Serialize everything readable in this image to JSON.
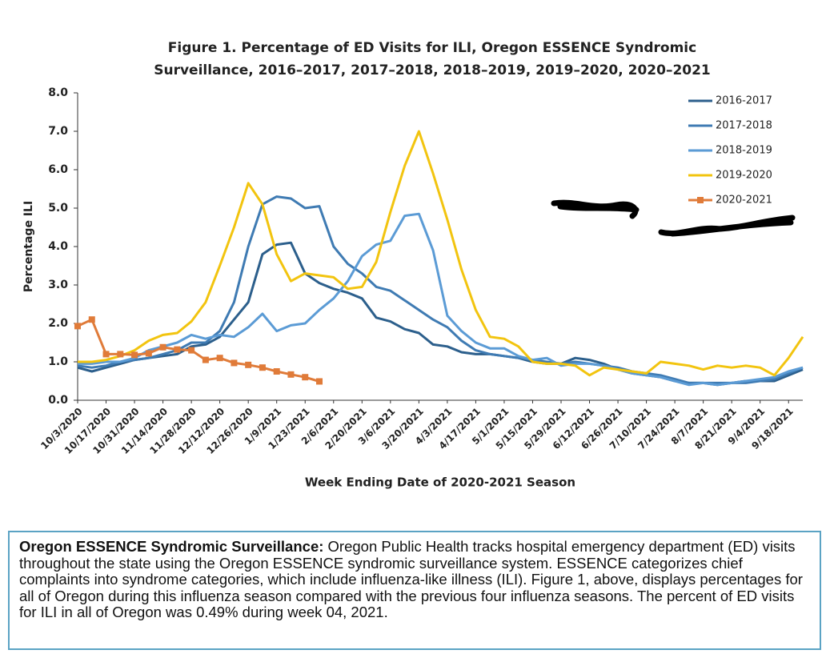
{
  "chart_data": {
    "type": "line",
    "title": [
      "Figure 1. Percentage of ED Visits for ILI, Oregon ESSENCE Syndromic",
      "Surveillance, 2016–2017, 2017–2018, 2018–2019, 2019–2020, 2020–2021"
    ],
    "x_label": "Week Ending Date of 2020-2021 Season",
    "y_label": "Percentage ILI",
    "categories": [
      "10/3/2020",
      null,
      "10/17/2020",
      null,
      "10/31/2020",
      null,
      "11/14/2020",
      null,
      "11/28/2020",
      null,
      "12/12/2020",
      null,
      "12/26/2020",
      null,
      "1/9/2021",
      null,
      "1/23/2021",
      null,
      "2/6/2021",
      null,
      "2/20/2021",
      null,
      "3/6/2021",
      null,
      "3/20/2021",
      null,
      "4/3/2021",
      null,
      "4/17/2021",
      null,
      "5/1/2021",
      null,
      "5/15/2021",
      null,
      "5/29/2021",
      null,
      "6/12/2021",
      null,
      "6/26/2021",
      null,
      "7/10/2021",
      null,
      "7/24/2021",
      null,
      "8/7/2021",
      null,
      "8/21/2021",
      null,
      "9/4/2021",
      null,
      "9/18/2021",
      null
    ],
    "ylim": [
      0,
      8
    ],
    "yticks": [
      {
        "value": 0,
        "label": "0.0"
      },
      {
        "value": 1,
        "label": "1.0"
      },
      {
        "value": 2,
        "label": "2.0"
      },
      {
        "value": 3,
        "label": "3.0"
      },
      {
        "value": 4,
        "label": "4.0"
      },
      {
        "value": 5,
        "label": "5.0"
      },
      {
        "value": 6,
        "label": "6.0"
      },
      {
        "value": 7,
        "label": "7.0"
      },
      {
        "value": 8,
        "label": "8.0"
      }
    ],
    "grid": false,
    "legend": "top-right",
    "series": [
      {
        "name": "2016-2017",
        "color": "#2c5f8c",
        "values": [
          0.85,
          0.75,
          0.85,
          0.95,
          1.05,
          1.1,
          1.15,
          1.2,
          1.4,
          1.45,
          1.65,
          2.1,
          2.55,
          3.8,
          4.05,
          4.1,
          3.3,
          3.05,
          2.9,
          2.8,
          2.65,
          2.15,
          2.05,
          1.85,
          1.75,
          1.45,
          1.4,
          1.25,
          1.2,
          1.2,
          1.15,
          1.1,
          1.0,
          0.95,
          0.95,
          1.1,
          1.05,
          0.95,
          0.8,
          0.7,
          0.65,
          0.6,
          0.5,
          0.45,
          0.45,
          0.4,
          0.45,
          0.5,
          0.5,
          0.5,
          0.65,
          0.8
        ]
      },
      {
        "name": "2017-2018",
        "color": "#3f7bb3",
        "values": [
          0.9,
          0.85,
          0.9,
          1.0,
          1.05,
          1.1,
          1.2,
          1.3,
          1.5,
          1.5,
          1.8,
          2.55,
          4.0,
          5.1,
          5.3,
          5.25,
          5.0,
          5.05,
          4.0,
          3.55,
          3.3,
          2.95,
          2.85,
          2.6,
          2.35,
          2.1,
          1.9,
          1.55,
          1.3,
          1.2,
          1.15,
          1.1,
          1.05,
          1.0,
          0.95,
          1.0,
          0.95,
          0.9,
          0.85,
          0.75,
          0.7,
          0.65,
          0.55,
          0.45,
          0.45,
          0.45,
          0.45,
          0.45,
          0.5,
          0.55,
          0.7,
          0.85
        ]
      },
      {
        "name": "2018-2019",
        "color": "#5b9bd5",
        "values": [
          0.95,
          0.95,
          1.0,
          1.0,
          1.1,
          1.3,
          1.4,
          1.5,
          1.7,
          1.6,
          1.7,
          1.65,
          1.9,
          2.25,
          1.8,
          1.95,
          2.0,
          2.35,
          2.65,
          3.1,
          3.75,
          4.05,
          4.15,
          4.8,
          4.85,
          3.9,
          2.2,
          1.8,
          1.5,
          1.35,
          1.35,
          1.15,
          1.05,
          1.1,
          0.9,
          0.95,
          0.95,
          0.9,
          0.8,
          0.7,
          0.65,
          0.6,
          0.5,
          0.4,
          0.45,
          0.4,
          0.45,
          0.5,
          0.55,
          0.6,
          0.75,
          0.85
        ]
      },
      {
        "name": "2019-2020",
        "color": "#f2c40f",
        "values": [
          1.0,
          1.0,
          1.05,
          1.15,
          1.3,
          1.55,
          1.7,
          1.75,
          2.05,
          2.55,
          3.5,
          4.5,
          5.65,
          5.1,
          3.8,
          3.1,
          3.3,
          3.25,
          3.2,
          2.9,
          2.95,
          3.6,
          4.9,
          6.1,
          7.0,
          5.9,
          4.7,
          3.4,
          2.35,
          1.65,
          1.6,
          1.4,
          1.0,
          0.95,
          0.95,
          0.9,
          0.65,
          0.85,
          0.8,
          0.75,
          0.7,
          1.0,
          0.95,
          0.9,
          0.8,
          0.9,
          0.85,
          0.9,
          0.85,
          0.65,
          1.1,
          1.65
        ]
      },
      {
        "name": "2020-2021",
        "color": "#e07b39",
        "marker": "square",
        "values": [
          1.93,
          2.1,
          1.2,
          1.2,
          1.18,
          1.22,
          1.38,
          1.32,
          1.3,
          1.05,
          1.1,
          0.97,
          0.92,
          0.85,
          0.75,
          0.67,
          0.6,
          0.49,
          null,
          null,
          null,
          null,
          null,
          null,
          null,
          null,
          null,
          null,
          null,
          null,
          null,
          null,
          null,
          null,
          null,
          null,
          null,
          null,
          null,
          null,
          null,
          null,
          null,
          null,
          null,
          null,
          null,
          null,
          null,
          null,
          null,
          null
        ]
      }
    ]
  },
  "note": {
    "title": "Oregon ESSENCE Syndromic Surveillance:",
    "text": "Oregon Public Health tracks hospital emergency department (ED) visits throughout the state using the Oregon ESSENCE syndromic surveillance system. ESSENCE categorizes chief complaints into syndrome categories, which include influenza-like illness (ILI). Figure 1, above, displays percentages for all of Oregon during this influenza season compared with the previous four influenza seasons. The percent of ED visits for ILI in all of Oregon was 0.49% during week 04, 2021."
  }
}
